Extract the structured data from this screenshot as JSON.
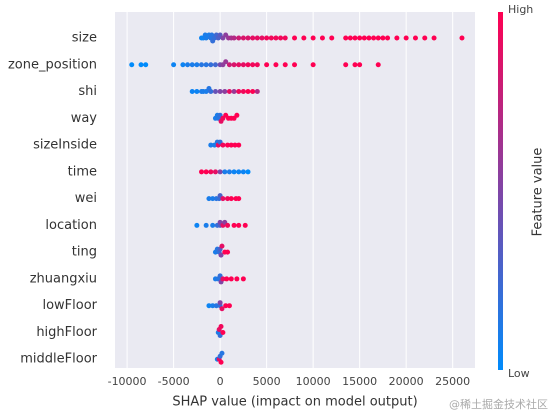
{
  "chart_data": {
    "type": "beeswarm",
    "xlabel": "SHAP value (impact on model output)",
    "xlim": [
      -11300,
      27400
    ],
    "xticks": [
      -10000,
      -5000,
      0,
      5000,
      10000,
      15000,
      20000,
      25000
    ],
    "grid": true,
    "colormap": [
      "#008bfb",
      "#ff0052"
    ],
    "colorbar": {
      "label": "Feature value",
      "high": "High",
      "low": "Low"
    },
    "watermark": "@稀土掘金技术社区",
    "series": [
      {
        "name": "size",
        "values": [
          -2000,
          -1800,
          -1600,
          -1500,
          -1200,
          -1000,
          -900,
          -800,
          -600,
          -400,
          -200,
          0,
          300,
          600,
          900,
          1200,
          1500,
          2000,
          2500,
          3000,
          3500,
          4000,
          4500,
          5000,
          5500,
          6000,
          6500,
          7000,
          8000,
          9000,
          10000,
          11000,
          12000,
          13500,
          14000,
          14500,
          15000,
          15500,
          16000,
          16500,
          17000,
          17500,
          18000,
          19000,
          20000,
          21000,
          22000,
          23000,
          26000
        ],
        "feature_values": [
          0.05,
          0.05,
          0.1,
          0.1,
          0.1,
          0.15,
          0.15,
          0.2,
          0.2,
          0.25,
          0.3,
          0.35,
          0.5,
          0.55,
          0.6,
          0.65,
          0.7,
          0.8,
          0.85,
          0.85,
          0.9,
          0.9,
          0.9,
          0.95,
          0.95,
          0.95,
          0.95,
          0.95,
          1,
          1,
          1,
          1,
          1,
          1,
          1,
          1,
          1,
          1,
          1,
          1,
          1,
          1,
          1,
          1,
          1,
          1,
          1,
          1,
          1
        ]
      },
      {
        "name": "zone_position",
        "values": [
          -9500,
          -8500,
          -8000,
          -5000,
          -4000,
          -3500,
          -3000,
          -2500,
          -2000,
          -1500,
          -1000,
          -500,
          0,
          300,
          600,
          1000,
          1500,
          2000,
          2500,
          3000,
          3500,
          4000,
          5000,
          6000,
          7000,
          8000,
          10000,
          13500,
          14500,
          15000,
          17000
        ],
        "feature_values": [
          0,
          0,
          0,
          0.05,
          0.05,
          0.1,
          0.1,
          0.1,
          0.15,
          0.15,
          0.2,
          0.25,
          0.45,
          0.55,
          0.6,
          0.8,
          0.85,
          0.9,
          0.9,
          0.95,
          0.95,
          0.95,
          1,
          1,
          1,
          1,
          1,
          1,
          1,
          1,
          1
        ]
      },
      {
        "name": "shi",
        "values": [
          -3000,
          -2500,
          -2000,
          -1800,
          -1500,
          -1200,
          -1000,
          -500,
          0,
          500,
          1000,
          1500,
          2000,
          2500,
          3000,
          3500,
          4000
        ],
        "feature_values": [
          0.05,
          0.05,
          0.1,
          0.1,
          0.1,
          0.15,
          0.2,
          0.4,
          0.5,
          0.55,
          0.9,
          0.6,
          0.95,
          0.95,
          1,
          1,
          0.7
        ]
      },
      {
        "name": "way",
        "values": [
          -500,
          -300,
          -200,
          0,
          100,
          300,
          600,
          900,
          1200,
          1500,
          1800
        ],
        "feature_values": [
          0.1,
          0.1,
          0.15,
          0.2,
          0.9,
          0.95,
          1,
          1,
          1,
          1,
          1
        ]
      },
      {
        "name": "sizeInside",
        "values": [
          -1000,
          -600,
          -300,
          -200,
          0,
          300,
          800,
          1200,
          1600,
          2000
        ],
        "feature_values": [
          0.1,
          0.1,
          0.15,
          0.9,
          0.2,
          0.95,
          1,
          1,
          1,
          1
        ]
      },
      {
        "name": "time",
        "values": [
          -2000,
          -1500,
          -1000,
          -500,
          0,
          500,
          1000,
          1500,
          2000,
          2500,
          3000
        ],
        "feature_values": [
          1,
          1,
          0.95,
          0.9,
          0.5,
          0.1,
          0.1,
          0.05,
          0.05,
          0.05,
          0
        ]
      },
      {
        "name": "wei",
        "values": [
          -1200,
          -800,
          -400,
          -100,
          0,
          300,
          800,
          1200,
          1700,
          2000
        ],
        "feature_values": [
          0.1,
          0.1,
          0.15,
          0.2,
          0.3,
          0.9,
          0.95,
          1,
          1,
          1
        ]
      },
      {
        "name": "location",
        "values": [
          -2500,
          -1500,
          -800,
          -300,
          0,
          0,
          300,
          500,
          800,
          1500,
          2000,
          2700
        ],
        "feature_values": [
          0.05,
          0.1,
          0.1,
          0.2,
          0.3,
          0.5,
          0.9,
          0.55,
          0.95,
          1,
          1,
          1
        ]
      },
      {
        "name": "ting",
        "values": [
          -500,
          -300,
          -100,
          0,
          100,
          200,
          500,
          800
        ],
        "feature_values": [
          0.1,
          0.15,
          0.2,
          0.3,
          0.5,
          0.9,
          1,
          1
        ]
      },
      {
        "name": "zhuangxiu",
        "values": [
          -500,
          -200,
          0,
          100,
          300,
          700,
          1200,
          1800,
          2500
        ],
        "feature_values": [
          0.1,
          0.15,
          0.2,
          0.5,
          0.9,
          1,
          1,
          1,
          1
        ]
      },
      {
        "name": "lowFloor",
        "values": [
          -1200,
          -800,
          -400,
          0,
          0,
          200,
          600,
          1000
        ],
        "feature_values": [
          0.05,
          0.1,
          0.15,
          0.2,
          0.5,
          0.9,
          1,
          1
        ]
      },
      {
        "name": "highFloor",
        "values": [
          -200,
          -100,
          0,
          100,
          300
        ],
        "feature_values": [
          0.1,
          0.9,
          0.2,
          0.95,
          1
        ]
      },
      {
        "name": "middleFloor",
        "values": [
          -300,
          -100,
          0,
          100,
          200
        ],
        "feature_values": [
          0.1,
          0.9,
          0.2,
          1,
          0.15
        ]
      }
    ]
  }
}
